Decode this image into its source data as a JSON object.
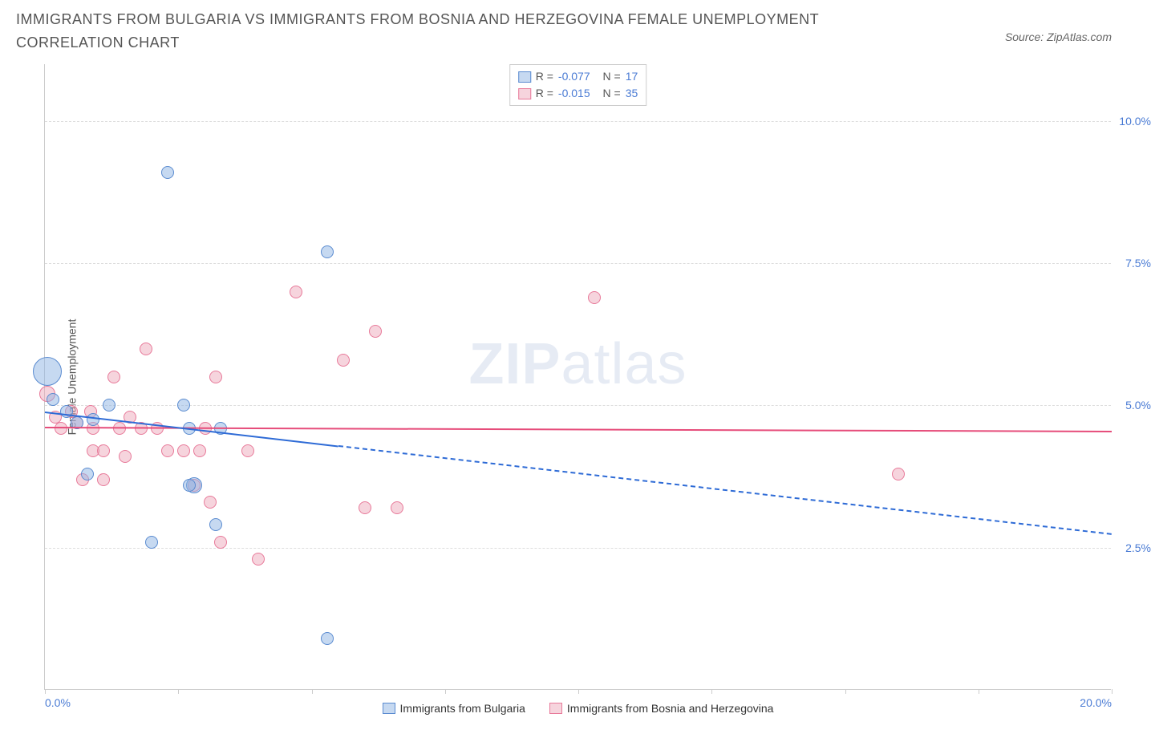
{
  "title": "IMMIGRANTS FROM BULGARIA VS IMMIGRANTS FROM BOSNIA AND HERZEGOVINA FEMALE UNEMPLOYMENT CORRELATION CHART",
  "source_text": "Source: ZipAtlas.com",
  "y_axis_label": "Female Unemployment",
  "watermark": {
    "part1": "ZIP",
    "part2": "atlas"
  },
  "colors": {
    "series_a_fill": "rgba(142,180,227,0.5)",
    "series_a_stroke": "#5a8bd0",
    "series_b_fill": "rgba(235,160,180,0.45)",
    "series_b_stroke": "#e87a9a",
    "trend_a": "#2e6bd6",
    "trend_b": "#e64c7a",
    "grid": "#dddddd",
    "axis": "#cccccc",
    "tick_label": "#4a7bd4",
    "background": "#ffffff"
  },
  "axes": {
    "x_min": 0.0,
    "x_max": 20.0,
    "y_min": 0.0,
    "y_max": 11.0,
    "y_ticks": [
      2.5,
      5.0,
      7.5,
      10.0
    ],
    "y_tick_labels": [
      "2.5%",
      "5.0%",
      "7.5%",
      "10.0%"
    ],
    "x_ticks": [
      0,
      2.5,
      5,
      7.5,
      10,
      12.5,
      15,
      17.5,
      20
    ],
    "x_left_label": "0.0%",
    "x_right_label": "20.0%"
  },
  "legend_top": {
    "rows": [
      {
        "swatch_fill": "rgba(142,180,227,0.5)",
        "swatch_stroke": "#5a8bd0",
        "r_label": "R =",
        "r_val": "-0.077",
        "n_label": "N =",
        "n_val": "17"
      },
      {
        "swatch_fill": "rgba(235,160,180,0.45)",
        "swatch_stroke": "#e87a9a",
        "r_label": "R =",
        "r_val": "-0.015",
        "n_label": "N =",
        "n_val": "35"
      }
    ]
  },
  "legend_bottom": {
    "items": [
      {
        "swatch_fill": "rgba(142,180,227,0.5)",
        "swatch_stroke": "#5a8bd0",
        "label": "Immigrants from Bulgaria"
      },
      {
        "swatch_fill": "rgba(235,160,180,0.45)",
        "swatch_stroke": "#e87a9a",
        "label": "Immigrants from Bosnia and Herzegovina"
      }
    ]
  },
  "series_a": {
    "name": "Immigrants from Bulgaria",
    "points": [
      {
        "x": 0.05,
        "y": 5.6,
        "r": 18
      },
      {
        "x": 0.15,
        "y": 5.1,
        "r": 8
      },
      {
        "x": 0.4,
        "y": 4.9,
        "r": 8
      },
      {
        "x": 0.6,
        "y": 4.7,
        "r": 8
      },
      {
        "x": 0.8,
        "y": 3.8,
        "r": 8
      },
      {
        "x": 1.2,
        "y": 5.0,
        "r": 8
      },
      {
        "x": 2.3,
        "y": 9.1,
        "r": 8
      },
      {
        "x": 2.6,
        "y": 5.0,
        "r": 8
      },
      {
        "x": 2.7,
        "y": 4.6,
        "r": 8
      },
      {
        "x": 2.0,
        "y": 2.6,
        "r": 8
      },
      {
        "x": 2.8,
        "y": 3.6,
        "r": 10
      },
      {
        "x": 3.3,
        "y": 4.6,
        "r": 8
      },
      {
        "x": 3.2,
        "y": 2.9,
        "r": 8
      },
      {
        "x": 5.3,
        "y": 7.7,
        "r": 8
      },
      {
        "x": 5.3,
        "y": 0.9,
        "r": 8
      },
      {
        "x": 0.9,
        "y": 4.75,
        "r": 8
      },
      {
        "x": 2.7,
        "y": 3.6,
        "r": 8
      }
    ],
    "trend": {
      "x1": 0,
      "y1": 4.9,
      "x2": 5.5,
      "y2": 4.3
    },
    "trend_dash": {
      "x1": 5.5,
      "y1": 4.3,
      "x2": 20,
      "y2": 2.75
    }
  },
  "series_b": {
    "name": "Immigrants from Bosnia and Herzegovina",
    "points": [
      {
        "x": 0.05,
        "y": 5.2,
        "r": 10
      },
      {
        "x": 0.2,
        "y": 4.8,
        "r": 8
      },
      {
        "x": 0.3,
        "y": 4.6,
        "r": 8
      },
      {
        "x": 0.5,
        "y": 4.9,
        "r": 8
      },
      {
        "x": 0.6,
        "y": 4.7,
        "r": 8
      },
      {
        "x": 0.85,
        "y": 4.9,
        "r": 8
      },
      {
        "x": 0.9,
        "y": 4.6,
        "r": 8
      },
      {
        "x": 0.9,
        "y": 4.2,
        "r": 8
      },
      {
        "x": 1.1,
        "y": 4.2,
        "r": 8
      },
      {
        "x": 1.1,
        "y": 3.7,
        "r": 8
      },
      {
        "x": 0.7,
        "y": 3.7,
        "r": 8
      },
      {
        "x": 1.3,
        "y": 5.5,
        "r": 8
      },
      {
        "x": 1.4,
        "y": 4.6,
        "r": 8
      },
      {
        "x": 1.6,
        "y": 4.8,
        "r": 8
      },
      {
        "x": 1.8,
        "y": 4.6,
        "r": 8
      },
      {
        "x": 1.9,
        "y": 6.0,
        "r": 8
      },
      {
        "x": 2.1,
        "y": 4.6,
        "r": 8
      },
      {
        "x": 2.3,
        "y": 4.2,
        "r": 8
      },
      {
        "x": 2.6,
        "y": 4.2,
        "r": 8
      },
      {
        "x": 2.8,
        "y": 3.6,
        "r": 8
      },
      {
        "x": 2.9,
        "y": 4.2,
        "r": 8
      },
      {
        "x": 3.0,
        "y": 4.6,
        "r": 8
      },
      {
        "x": 3.1,
        "y": 3.3,
        "r": 8
      },
      {
        "x": 3.2,
        "y": 5.5,
        "r": 8
      },
      {
        "x": 3.3,
        "y": 2.6,
        "r": 8
      },
      {
        "x": 3.8,
        "y": 4.2,
        "r": 8
      },
      {
        "x": 4.0,
        "y": 2.3,
        "r": 8
      },
      {
        "x": 4.7,
        "y": 7.0,
        "r": 8
      },
      {
        "x": 5.6,
        "y": 5.8,
        "r": 8
      },
      {
        "x": 6.0,
        "y": 3.2,
        "r": 8
      },
      {
        "x": 6.2,
        "y": 6.3,
        "r": 8
      },
      {
        "x": 6.6,
        "y": 3.2,
        "r": 8
      },
      {
        "x": 10.3,
        "y": 6.9,
        "r": 8
      },
      {
        "x": 16.0,
        "y": 3.8,
        "r": 8
      },
      {
        "x": 1.5,
        "y": 4.1,
        "r": 8
      }
    ],
    "trend": {
      "x1": 0,
      "y1": 4.62,
      "x2": 20,
      "y2": 4.55
    }
  }
}
